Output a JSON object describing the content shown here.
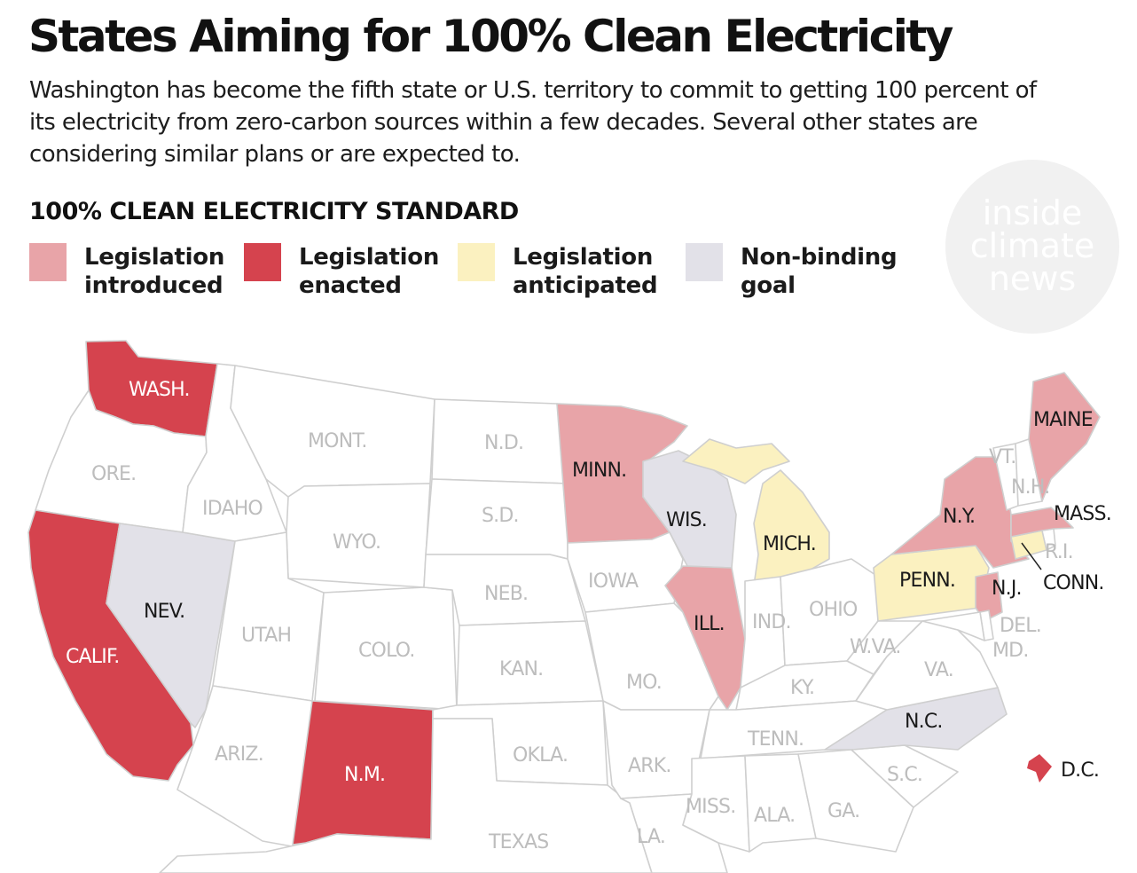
{
  "title": "States Aiming for 100% Clean Electricity",
  "subtitle": "Washington has become the fifth state or U.S. territory to commit to getting 100 percent of its electricity from zero-carbon sources within a few decades. Several other states are considering similar plans or are expected to.",
  "legend": {
    "heading": "100% CLEAN ELECTRICITY STANDARD",
    "items": [
      {
        "label": "Legislation\nintroduced",
        "color": "#e8a4a8"
      },
      {
        "label": "Legislation\nenacted",
        "color": "#d5434e"
      },
      {
        "label": "Legislation\nanticipated",
        "color": "#fbf1c0"
      },
      {
        "label": "Non-binding\ngoal",
        "color": "#e2e1e8"
      }
    ]
  },
  "logo": {
    "text": "inside\nclimate\nnews"
  },
  "colors": {
    "none": "#ffffff",
    "introduced": "#e8a4a8",
    "enacted": "#d5434e",
    "anticipated": "#fbf1c0",
    "goal": "#e2e1e8",
    "border": "#cfcfcf",
    "label_dark": "#1a1a1a",
    "label_light": "#bdbdbd",
    "label_on_red": "#ffffff"
  },
  "map": {
    "states": [
      {
        "id": "wa",
        "label": "WASH.",
        "status": "enacted"
      },
      {
        "id": "or",
        "label": "ORE.",
        "status": "none"
      },
      {
        "id": "ca",
        "label": "CALIF.",
        "status": "enacted"
      },
      {
        "id": "nv",
        "label": "NEV.",
        "status": "goal"
      },
      {
        "id": "id",
        "label": "IDAHO",
        "status": "none"
      },
      {
        "id": "mt",
        "label": "MONT.",
        "status": "none"
      },
      {
        "id": "wy",
        "label": "WYO.",
        "status": "none"
      },
      {
        "id": "ut",
        "label": "UTAH",
        "status": "none"
      },
      {
        "id": "az",
        "label": "ARIZ.",
        "status": "none"
      },
      {
        "id": "co",
        "label": "COLO.",
        "status": "none"
      },
      {
        "id": "nm",
        "label": "N.M.",
        "status": "enacted"
      },
      {
        "id": "nd",
        "label": "N.D.",
        "status": "none"
      },
      {
        "id": "sd",
        "label": "S.D.",
        "status": "none"
      },
      {
        "id": "ne",
        "label": "NEB.",
        "status": "none"
      },
      {
        "id": "ks",
        "label": "KAN.",
        "status": "none"
      },
      {
        "id": "ok",
        "label": "OKLA.",
        "status": "none"
      },
      {
        "id": "tx",
        "label": "TEXAS",
        "status": "none"
      },
      {
        "id": "mn",
        "label": "MINN.",
        "status": "introduced"
      },
      {
        "id": "ia",
        "label": "IOWA",
        "status": "none"
      },
      {
        "id": "mo",
        "label": "MO.",
        "status": "none"
      },
      {
        "id": "ar",
        "label": "ARK.",
        "status": "none"
      },
      {
        "id": "la",
        "label": "LA.",
        "status": "none"
      },
      {
        "id": "wi",
        "label": "WIS.",
        "status": "goal"
      },
      {
        "id": "il",
        "label": "ILL.",
        "status": "introduced"
      },
      {
        "id": "mi",
        "label": "MICH.",
        "status": "anticipated"
      },
      {
        "id": "in",
        "label": "IND.",
        "status": "none"
      },
      {
        "id": "oh",
        "label": "OHIO",
        "status": "none"
      },
      {
        "id": "ky",
        "label": "KY.",
        "status": "none"
      },
      {
        "id": "tn",
        "label": "TENN.",
        "status": "none"
      },
      {
        "id": "ms",
        "label": "MISS.",
        "status": "none"
      },
      {
        "id": "al",
        "label": "ALA.",
        "status": "none"
      },
      {
        "id": "ga",
        "label": "GA.",
        "status": "none"
      },
      {
        "id": "sc",
        "label": "S.C.",
        "status": "none"
      },
      {
        "id": "nc",
        "label": "N.C.",
        "status": "goal"
      },
      {
        "id": "va",
        "label": "VA.",
        "status": "none"
      },
      {
        "id": "wv",
        "label": "W.VA.",
        "status": "none"
      },
      {
        "id": "pa",
        "label": "PENN.",
        "status": "anticipated"
      },
      {
        "id": "ny",
        "label": "N.Y.",
        "status": "introduced"
      },
      {
        "id": "nj",
        "label": "N.J.",
        "status": "introduced"
      },
      {
        "id": "de",
        "label": "DEL.",
        "status": "none"
      },
      {
        "id": "md",
        "label": "MD.",
        "status": "none"
      },
      {
        "id": "ct",
        "label": "CONN.",
        "status": "anticipated"
      },
      {
        "id": "ri",
        "label": "R.I.",
        "status": "none"
      },
      {
        "id": "ma",
        "label": "MASS.",
        "status": "introduced"
      },
      {
        "id": "vt",
        "label": "VT.",
        "status": "none"
      },
      {
        "id": "nh",
        "label": "N.H.",
        "status": "none"
      },
      {
        "id": "me",
        "label": "MAINE",
        "status": "introduced"
      },
      {
        "id": "dc",
        "label": "D.C.",
        "status": "enacted"
      }
    ]
  }
}
